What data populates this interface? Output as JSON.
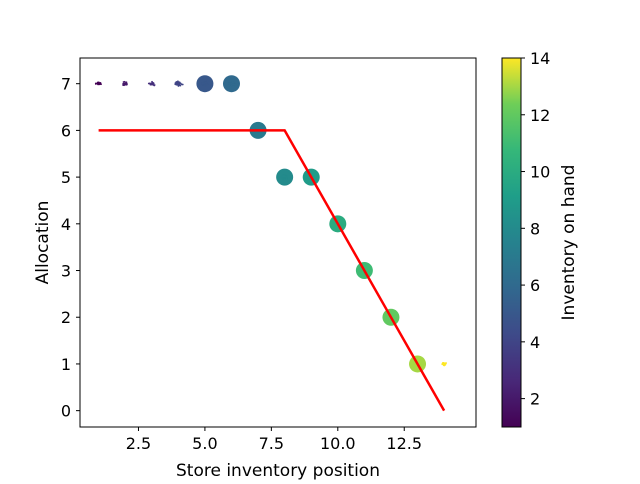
{
  "chart_data": {
    "type": "scatter",
    "title": "",
    "xlabel": "Store inventory position",
    "ylabel": "Allocation",
    "xlim": [
      0.3,
      15.2
    ],
    "ylim": [
      -0.35,
      7.55
    ],
    "xticks": [
      2.5,
      5.0,
      7.5,
      10.0,
      12.5
    ],
    "xtick_labels": [
      "2.5",
      "5.0",
      "7.5",
      "10.0",
      "12.5"
    ],
    "yticks": [
      0,
      1,
      2,
      3,
      4,
      5,
      6,
      7
    ],
    "ytick_labels": [
      "0",
      "1",
      "2",
      "3",
      "4",
      "5",
      "6",
      "7"
    ],
    "grid": false,
    "legend": "none",
    "colorbar": {
      "label": "Inventory on hand",
      "colormap": "viridis",
      "range": [
        1,
        14
      ],
      "ticks": [
        2,
        4,
        6,
        8,
        10,
        12,
        14
      ],
      "tick_labels": [
        "2",
        "4",
        "6",
        "8",
        "10",
        "12",
        "14"
      ]
    },
    "clusters": [
      {
        "x": 1,
        "y": 7,
        "inventory_on_hand": 1,
        "density": "sparse"
      },
      {
        "x": 2,
        "y": 7,
        "inventory_on_hand": 2,
        "density": "sparse"
      },
      {
        "x": 3,
        "y": 7,
        "inventory_on_hand": 3,
        "density": "sparse"
      },
      {
        "x": 4,
        "y": 7,
        "inventory_on_hand": 4,
        "density": "medium"
      },
      {
        "x": 5,
        "y": 7,
        "inventory_on_hand": 5,
        "density": "dense"
      },
      {
        "x": 6,
        "y": 7,
        "inventory_on_hand": 6,
        "density": "dense"
      },
      {
        "x": 7,
        "y": 6,
        "inventory_on_hand": 7,
        "density": "dense"
      },
      {
        "x": 8,
        "y": 5,
        "inventory_on_hand": 8,
        "density": "dense"
      },
      {
        "x": 9,
        "y": 5,
        "inventory_on_hand": 9,
        "density": "dense"
      },
      {
        "x": 10,
        "y": 4,
        "inventory_on_hand": 10,
        "density": "dense"
      },
      {
        "x": 11,
        "y": 3,
        "inventory_on_hand": 11,
        "density": "dense"
      },
      {
        "x": 12,
        "y": 2,
        "inventory_on_hand": 12,
        "density": "dense"
      },
      {
        "x": 13,
        "y": 1,
        "inventory_on_hand": 13,
        "density": "dense"
      },
      {
        "x": 14,
        "y": 1,
        "inventory_on_hand": 14,
        "density": "sparse"
      }
    ],
    "line": {
      "color": "#ff0000",
      "points": [
        [
          1,
          6
        ],
        [
          8,
          6
        ],
        [
          14,
          0
        ]
      ]
    }
  }
}
